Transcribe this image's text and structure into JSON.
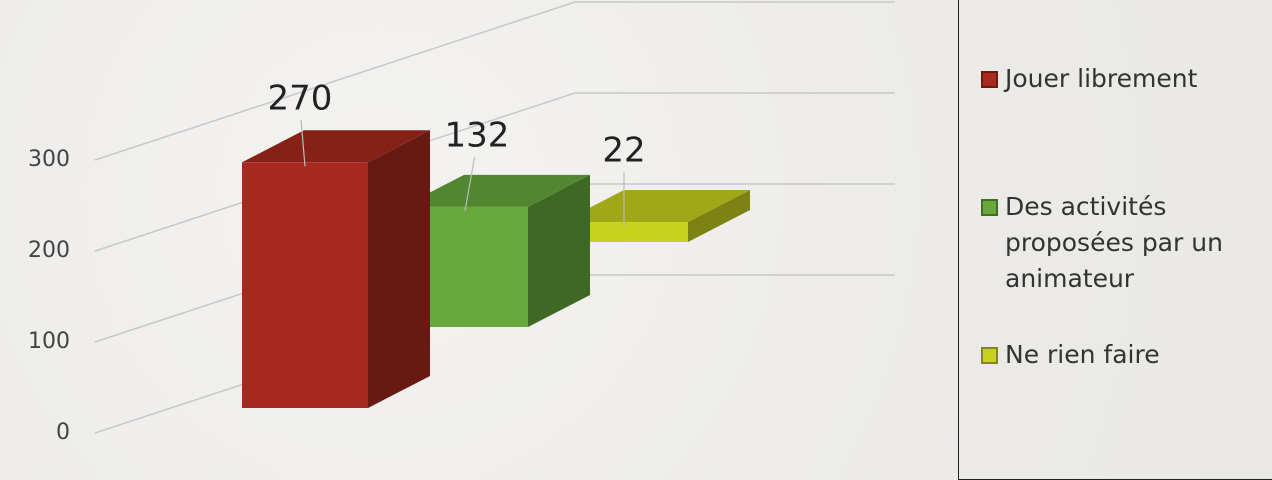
{
  "chart_data": {
    "type": "bar3d",
    "series": [
      {
        "name": "Jouer librement",
        "color": "#a8291d",
        "values": [
          270
        ]
      },
      {
        "name": "Des activités proposées par un animateur",
        "color": "#66a83c",
        "values": [
          132
        ]
      },
      {
        "name": "Ne rien faire",
        "color": "#c8d21e",
        "values": [
          22
        ]
      }
    ],
    "ylim": [
      0,
      400
    ],
    "yticks": [
      0,
      100,
      200,
      300
    ],
    "grid": true,
    "legend": "right"
  }
}
